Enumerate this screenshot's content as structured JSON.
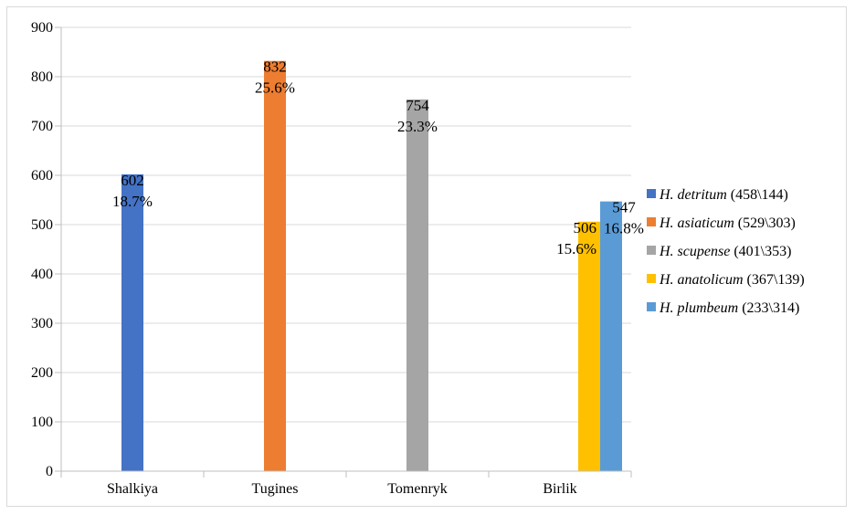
{
  "chart_data": {
    "type": "bar",
    "categories": [
      "Shalkiya",
      "Tugines",
      "Tomenryk",
      "Birlik"
    ],
    "ylim": [
      0,
      900
    ],
    "y_ticks": [
      0,
      100,
      200,
      300,
      400,
      500,
      600,
      700,
      800,
      900
    ],
    "grid": true,
    "legend_position": "right",
    "series": [
      {
        "name": "H. detritum",
        "name_suffix": "(458\\144)",
        "color": "#4472c4",
        "values": [
          602,
          null,
          null,
          null
        ],
        "labels": [
          "602",
          null,
          null,
          null
        ],
        "pct_labels": [
          "18.7%",
          null,
          null,
          null
        ]
      },
      {
        "name": "H. asiaticum",
        "name_suffix": "(529\\303)",
        "color": "#ed7d31",
        "values": [
          null,
          832,
          null,
          null
        ],
        "labels": [
          null,
          "832",
          null,
          null
        ],
        "pct_labels": [
          null,
          "25.6%",
          null,
          null
        ]
      },
      {
        "name": "H. scupense",
        "name_suffix": "(401\\353)",
        "color": "#a5a5a5",
        "values": [
          null,
          null,
          754,
          null
        ],
        "labels": [
          null,
          null,
          "754",
          null
        ],
        "pct_labels": [
          null,
          null,
          "23.3%",
          null
        ]
      },
      {
        "name": "H. anatolicum",
        "name_suffix": "(367\\139)",
        "color": "#ffc000",
        "values": [
          null,
          null,
          null,
          506
        ],
        "labels": [
          null,
          null,
          null,
          "506"
        ],
        "pct_labels": [
          null,
          null,
          null,
          "15.6%"
        ]
      },
      {
        "name": "H. plumbeum",
        "name_suffix": "(233\\314)",
        "color": "#5b9bd5",
        "values": [
          null,
          null,
          null,
          547
        ],
        "labels": [
          null,
          null,
          null,
          "547"
        ],
        "pct_labels": [
          null,
          null,
          null,
          "16.8%"
        ]
      }
    ]
  }
}
